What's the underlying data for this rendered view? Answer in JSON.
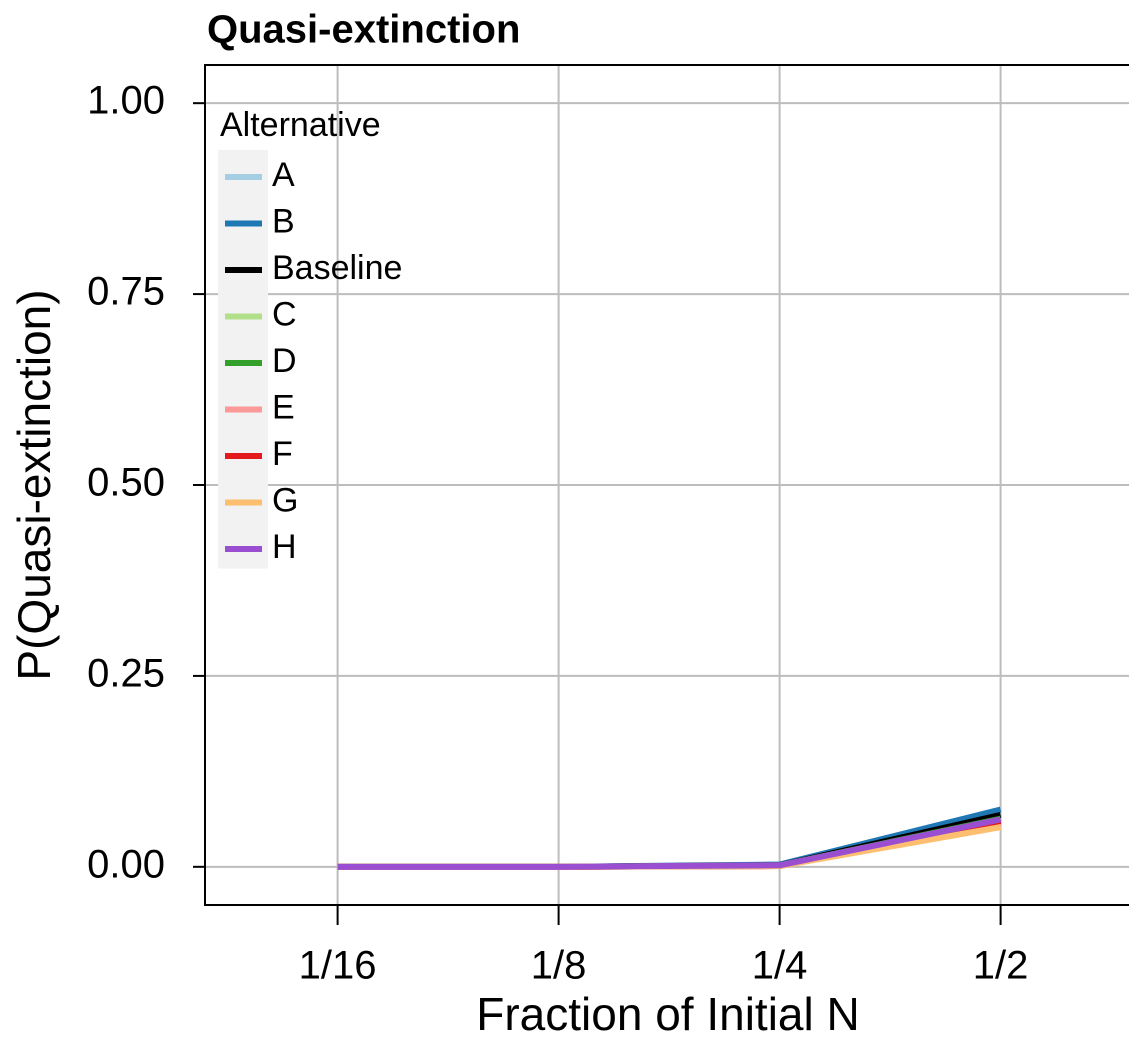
{
  "chart_data": {
    "type": "line",
    "title": "Quasi-extinction",
    "x_label": "Fraction of Initial N",
    "y_label": "P(Quasi-extinction)",
    "categories": [
      "1/16",
      "1/8",
      "1/4",
      "1/2"
    ],
    "ylim": [
      -0.05,
      1.05
    ],
    "yticks": [
      {
        "value": 0,
        "label": "0.00"
      },
      {
        "value": 0.25,
        "label": "0.25"
      },
      {
        "value": 0.5,
        "label": "0.50"
      },
      {
        "value": 0.75,
        "label": "0.75"
      },
      {
        "value": 1,
        "label": "1.00"
      }
    ],
    "grid": true,
    "legend_title": "Alternative",
    "legend_position": "upper left",
    "series": [
      {
        "name": "A",
        "color": "#a6cee3",
        "values": [
          0,
          0,
          0.002,
          0.07
        ]
      },
      {
        "name": "B",
        "color": "#1f78b4",
        "values": [
          0,
          0,
          0.003,
          0.075
        ]
      },
      {
        "name": "Baseline",
        "color": "#000000",
        "values": [
          0,
          0,
          0.002,
          0.068
        ]
      },
      {
        "name": "C",
        "color": "#b2df8a",
        "values": [
          0,
          0,
          0.001,
          0.06
        ]
      },
      {
        "name": "D",
        "color": "#33a02c",
        "values": [
          0,
          0,
          0.002,
          0.063
        ]
      },
      {
        "name": "E",
        "color": "#fb9a99",
        "values": [
          0,
          0,
          0.001,
          0.058
        ]
      },
      {
        "name": "F",
        "color": "#e31a1c",
        "values": [
          0,
          0,
          0.001,
          0.06
        ]
      },
      {
        "name": "G",
        "color": "#fdbf6f",
        "values": [
          0,
          0,
          0.001,
          0.052
        ]
      },
      {
        "name": "H",
        "color": "#9a4fd0",
        "values": [
          0,
          0,
          0.002,
          0.062
        ]
      }
    ]
  }
}
